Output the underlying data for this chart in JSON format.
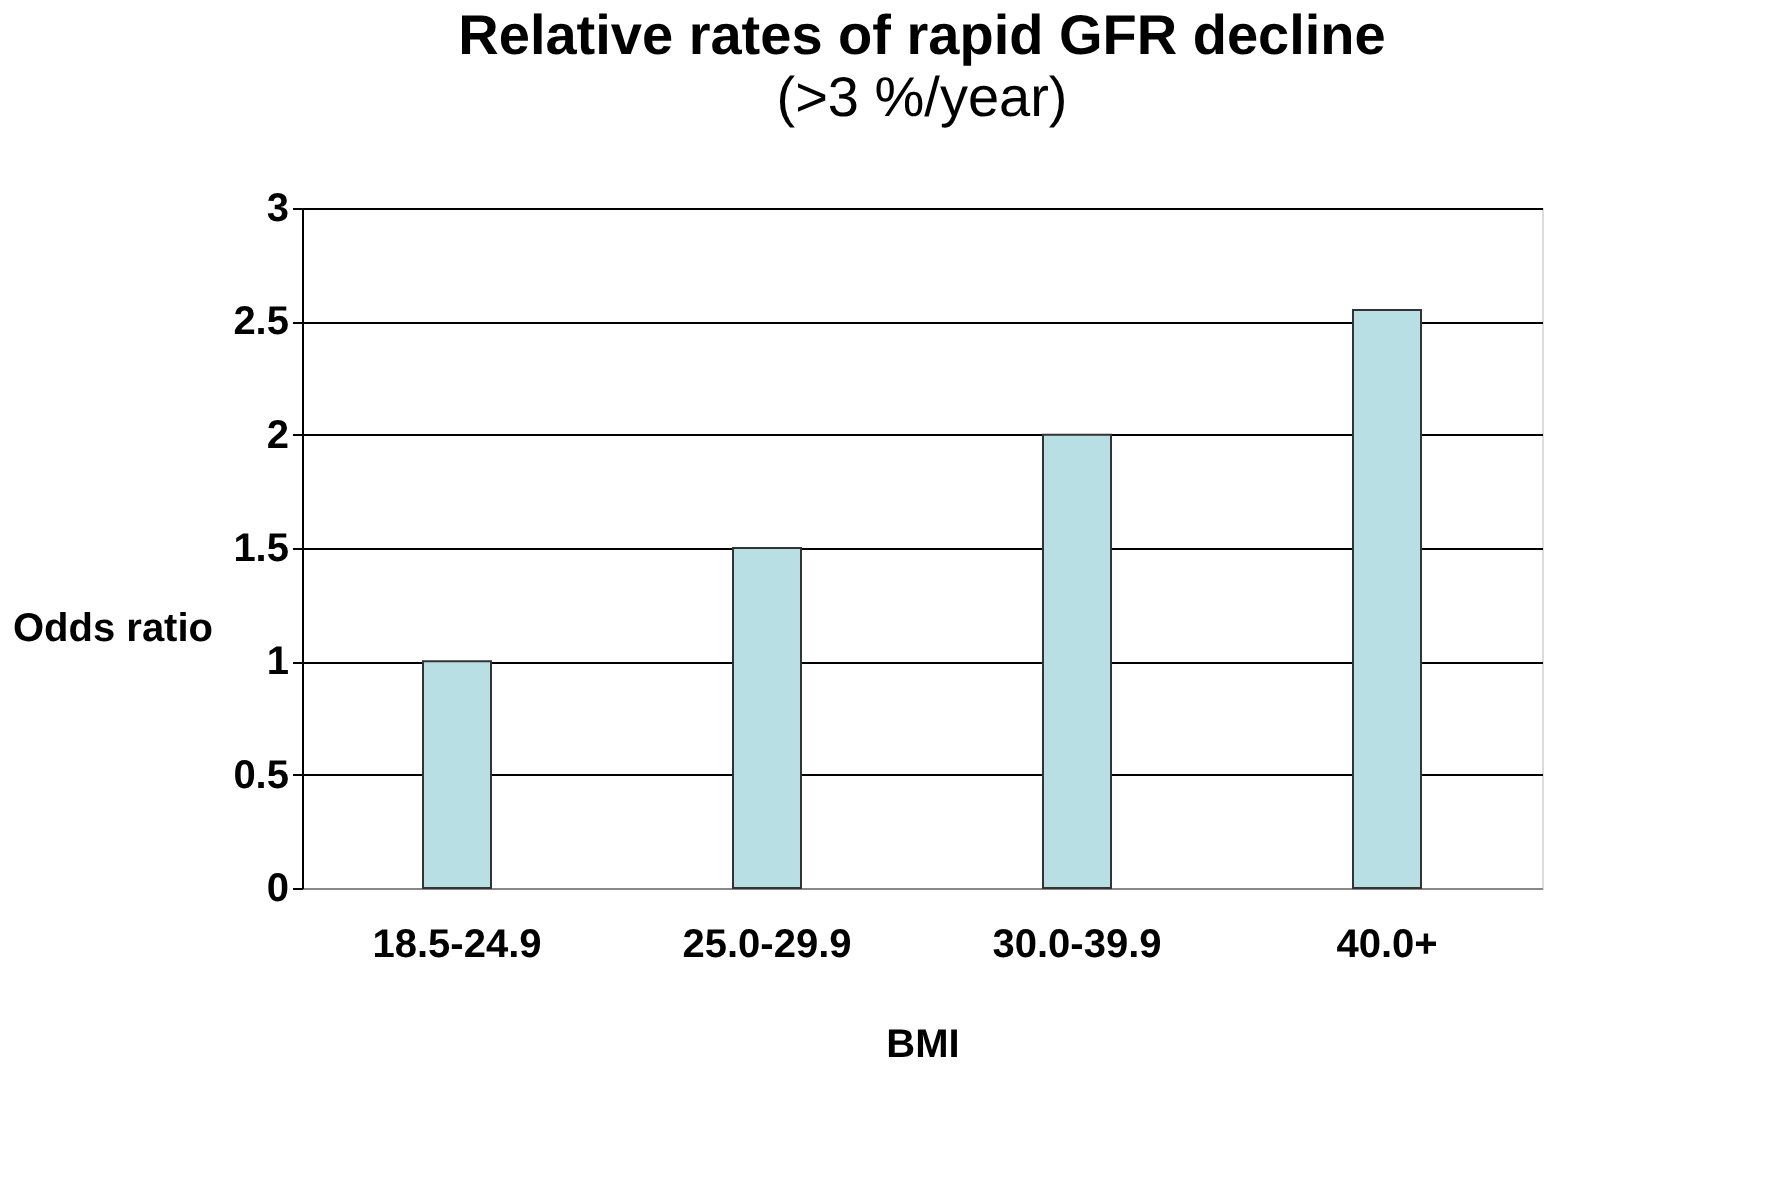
{
  "chart_data": {
    "type": "bar",
    "title": "Relative rates of rapid GFR decline",
    "subtitle": "(>3 %/year)",
    "xlabel": "BMI",
    "ylabel": "Odds ratio",
    "categories": [
      "18.5-24.9",
      "25.0-29.9",
      "30.0-39.9",
      "40.0+"
    ],
    "values": [
      1,
      1.5,
      2,
      2.55
    ],
    "color": "#b8dfe3",
    "ylim": [
      0,
      3
    ],
    "yticks": [
      0,
      0.5,
      1,
      1.5,
      2,
      2.5,
      3
    ],
    "grid": "y"
  }
}
